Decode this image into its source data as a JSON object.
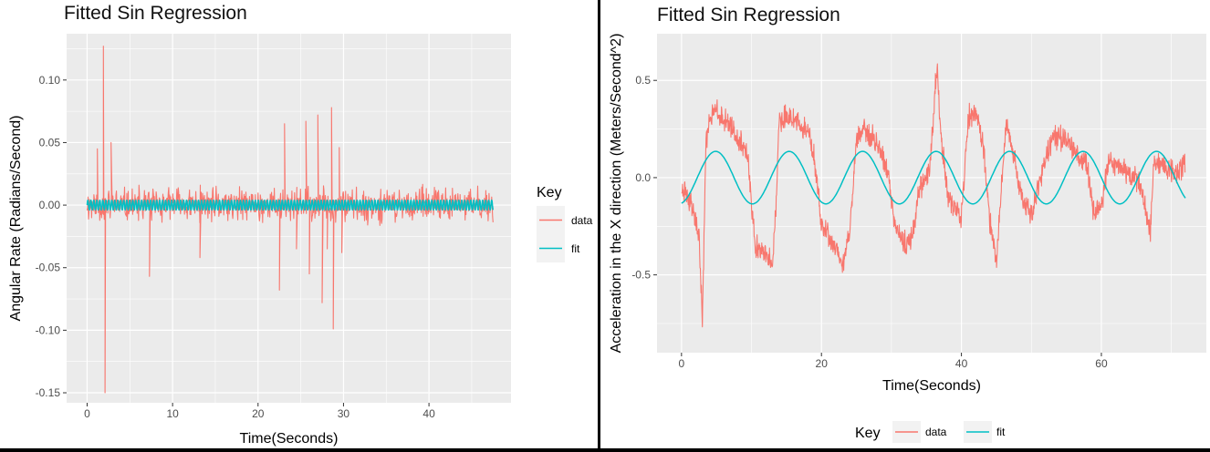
{
  "chart_data": [
    {
      "type": "line",
      "title": "Fitted Sin Regression",
      "xlabel": "Time(Seconds)",
      "ylabel": "Angular Rate (Radians/Second)",
      "xlim": [
        -2.4,
        49.6
      ],
      "ylim": [
        -0.158,
        0.137
      ],
      "xticks": [
        0,
        10,
        20,
        30,
        40
      ],
      "yticks": [
        0.1,
        0.05,
        0.0,
        -0.05,
        -0.1,
        -0.15
      ],
      "ytick_labels": [
        "0.10",
        "0.05",
        "0.00",
        "-0.05",
        "-0.10",
        "-0.15"
      ],
      "grid": true,
      "legend": {
        "title": "Key",
        "position": "right",
        "entries": [
          "data",
          "fit"
        ]
      },
      "colors": {
        "data": "#F8766D",
        "fit": "#00BFC4",
        "panel": "#EBEBEB",
        "grid": "#FFFFFF"
      },
      "series": [
        {
          "name": "data",
          "kind": "noisy-oscillation",
          "x_range": [
            0,
            47.5
          ],
          "baseline": 0.0,
          "noise_amplitude": 0.012,
          "spikes": [
            {
              "x": 1.2,
              "y": 0.045
            },
            {
              "x": 1.9,
              "y": 0.127
            },
            {
              "x": 2.1,
              "y": -0.15
            },
            {
              "x": 2.8,
              "y": 0.05
            },
            {
              "x": 7.3,
              "y": -0.057
            },
            {
              "x": 13.2,
              "y": -0.042
            },
            {
              "x": 22.5,
              "y": -0.068
            },
            {
              "x": 23.1,
              "y": 0.065
            },
            {
              "x": 24.5,
              "y": -0.035
            },
            {
              "x": 25.6,
              "y": 0.067
            },
            {
              "x": 26.0,
              "y": -0.055
            },
            {
              "x": 27.0,
              "y": 0.072
            },
            {
              "x": 27.5,
              "y": -0.078
            },
            {
              "x": 28.1,
              "y": -0.035
            },
            {
              "x": 28.6,
              "y": 0.078
            },
            {
              "x": 28.8,
              "y": -0.099
            },
            {
              "x": 29.5,
              "y": 0.046
            },
            {
              "x": 29.8,
              "y": -0.038
            }
          ]
        },
        {
          "name": "fit",
          "kind": "sine",
          "x_range": [
            0,
            47.5
          ],
          "amplitude": 0.004,
          "offset": 0.0,
          "period": 0.35
        }
      ]
    },
    {
      "type": "line",
      "title": "Fitted Sin Regression",
      "xlabel": "Time(Seconds)",
      "ylabel": "Acceleration in the X direction (Meters/Second^2)",
      "xlim": [
        -3.5,
        75
      ],
      "ylim": [
        -0.9,
        0.74
      ],
      "xticks": [
        0,
        20,
        40,
        60
      ],
      "yticks": [
        0.5,
        0.0,
        -0.5
      ],
      "ytick_labels": [
        "0.5",
        "0.0",
        "-0.5"
      ],
      "grid": true,
      "legend": {
        "title": "Key",
        "position": "bottom",
        "entries": [
          "data",
          "fit"
        ]
      },
      "colors": {
        "data": "#F8766D",
        "fit": "#00BFC4",
        "panel": "#EBEBEB",
        "grid": "#FFFFFF"
      },
      "series": [
        {
          "name": "data",
          "kind": "noisy-cycles",
          "x_range": [
            0,
            72
          ],
          "noise_amplitude": 0.06,
          "control_points": [
            [
              0,
              -0.05
            ],
            [
              1.5,
              -0.15
            ],
            [
              2.5,
              -0.3
            ],
            [
              3,
              -0.75
            ],
            [
              3.5,
              0.2
            ],
            [
              4.5,
              0.35
            ],
            [
              6,
              0.3
            ],
            [
              8,
              0.22
            ],
            [
              9.5,
              0.1
            ],
            [
              10.5,
              -0.35
            ],
            [
              12,
              -0.4
            ],
            [
              13,
              -0.45
            ],
            [
              13.5,
              -0.15
            ],
            [
              14,
              0.3
            ],
            [
              16,
              0.3
            ],
            [
              18,
              0.25
            ],
            [
              19,
              0.1
            ],
            [
              20,
              -0.25
            ],
            [
              22,
              -0.35
            ],
            [
              23,
              -0.45
            ],
            [
              24,
              -0.3
            ],
            [
              25,
              0.2
            ],
            [
              26,
              0.25
            ],
            [
              28,
              0.18
            ],
            [
              29.5,
              0.02
            ],
            [
              30.5,
              -0.25
            ],
            [
              32,
              -0.35
            ],
            [
              33,
              -0.3
            ],
            [
              34,
              -0.05
            ],
            [
              35.5,
              0.05
            ],
            [
              36.5,
              0.6
            ],
            [
              37,
              0.25
            ],
            [
              38,
              -0.1
            ],
            [
              39,
              -0.15
            ],
            [
              40,
              -0.2
            ],
            [
              41,
              0.3
            ],
            [
              42,
              0.35
            ],
            [
              43,
              0.2
            ],
            [
              44,
              -0.2
            ],
            [
              45,
              -0.45
            ],
            [
              46,
              0.1
            ],
            [
              46.5,
              0.28
            ],
            [
              47.5,
              0.1
            ],
            [
              48.5,
              -0.1
            ],
            [
              50,
              -0.2
            ],
            [
              51.5,
              0.02
            ],
            [
              53,
              0.2
            ],
            [
              55,
              0.2
            ],
            [
              57,
              0.1
            ],
            [
              58,
              0.05
            ],
            [
              59,
              -0.2
            ],
            [
              60,
              -0.15
            ],
            [
              61,
              0.1
            ],
            [
              63,
              0.05
            ],
            [
              65,
              0.0
            ],
            [
              66,
              -0.1
            ],
            [
              67,
              -0.3
            ],
            [
              67.5,
              0.1
            ],
            [
              69,
              0.05
            ],
            [
              71,
              0.02
            ],
            [
              72,
              0.05
            ]
          ]
        },
        {
          "name": "fit",
          "kind": "sine",
          "x_range": [
            0,
            72
          ],
          "amplitude": 0.135,
          "offset": 0.0,
          "period": 10.5,
          "phase": -1.35
        }
      ]
    }
  ]
}
